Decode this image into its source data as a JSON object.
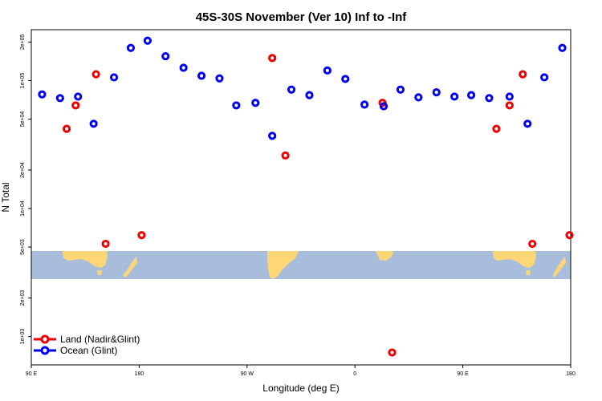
{
  "chart_data": {
    "type": "scatter",
    "title": "45S-30S November (Ver 10)   Inf to -Inf",
    "xlabel": "Longitude (deg E)",
    "ylabel": "N Total",
    "y_scale": "log",
    "xlim": [
      90,
      540
    ],
    "ylim": [
      600,
      250000
    ],
    "x_ticks": [
      {
        "value": 90,
        "label": "90 E"
      },
      {
        "value": 180,
        "label": "180"
      },
      {
        "value": 270,
        "label": "90 W"
      },
      {
        "value": 360,
        "label": "0"
      },
      {
        "value": 450,
        "label": "90 E"
      },
      {
        "value": 540,
        "label": "180"
      }
    ],
    "y_ticks": [
      {
        "value": 1000,
        "label": "1e+03"
      },
      {
        "value": 2000,
        "label": "2e+03"
      },
      {
        "value": 5000,
        "label": "5e+03"
      },
      {
        "value": 10000,
        "label": "1e+04"
      },
      {
        "value": 20000,
        "label": "2e+04"
      },
      {
        "value": 50000,
        "label": "5e+04"
      },
      {
        "value": 100000,
        "label": "1e+05"
      },
      {
        "value": 200000,
        "label": "2e+05"
      }
    ],
    "grid": false,
    "legend_position": "bottom-left",
    "map_band_y_range": [
      3500,
      5800
    ],
    "map_colors": {
      "ocean": "#a8bcdc",
      "land": "#fdd775"
    },
    "series": [
      {
        "name": "Land (Nadir&Glint)",
        "color": "#ee0000",
        "points": [
          {
            "x": 119.5,
            "y": 42000
          },
          {
            "x": 127,
            "y": 64000
          },
          {
            "x": 144,
            "y": 112000
          },
          {
            "x": 152,
            "y": 5300
          },
          {
            "x": 182,
            "y": 6200
          },
          {
            "x": 291,
            "y": 150000
          },
          {
            "x": 302,
            "y": 26000
          },
          {
            "x": 383,
            "y": 67000
          },
          {
            "x": 391,
            "y": 750
          },
          {
            "x": 478,
            "y": 42000
          },
          {
            "x": 489,
            "y": 64000
          },
          {
            "x": 500,
            "y": 112000
          },
          {
            "x": 508,
            "y": 5300
          },
          {
            "x": 539,
            "y": 6200
          }
        ]
      },
      {
        "name": "Ocean (Glint)",
        "color": "#0000ee",
        "points": [
          {
            "x": 99,
            "y": 78000
          },
          {
            "x": 114,
            "y": 73000
          },
          {
            "x": 129,
            "y": 75000
          },
          {
            "x": 142,
            "y": 46000
          },
          {
            "x": 159,
            "y": 106000
          },
          {
            "x": 173,
            "y": 180000
          },
          {
            "x": 187,
            "y": 205000
          },
          {
            "x": 202,
            "y": 155000
          },
          {
            "x": 217,
            "y": 126000
          },
          {
            "x": 232,
            "y": 109000
          },
          {
            "x": 247,
            "y": 104000
          },
          {
            "x": 261,
            "y": 64000
          },
          {
            "x": 277,
            "y": 67000
          },
          {
            "x": 291,
            "y": 37000
          },
          {
            "x": 307,
            "y": 85000
          },
          {
            "x": 322,
            "y": 77000
          },
          {
            "x": 337,
            "y": 120000
          },
          {
            "x": 352,
            "y": 103000
          },
          {
            "x": 368,
            "y": 65000
          },
          {
            "x": 384,
            "y": 63000
          },
          {
            "x": 398,
            "y": 85000
          },
          {
            "x": 413,
            "y": 74000
          },
          {
            "x": 428,
            "y": 81000
          },
          {
            "x": 443,
            "y": 75000
          },
          {
            "x": 457,
            "y": 77000
          },
          {
            "x": 472,
            "y": 73000
          },
          {
            "x": 489,
            "y": 75000
          },
          {
            "x": 504,
            "y": 46000
          },
          {
            "x": 518,
            "y": 106000
          },
          {
            "x": 533,
            "y": 180000
          }
        ]
      }
    ]
  }
}
